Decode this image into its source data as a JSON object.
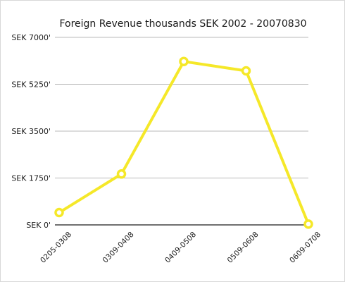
{
  "chart_data": {
    "type": "line",
    "title": "Foreign Revenue thousands SEK 2002 - 20070830",
    "xlabel": "",
    "ylabel": "",
    "categories": [
      "0205-0308",
      "0309-0408",
      "0409-0508",
      "0509-0608",
      "0609-0708"
    ],
    "series": [
      {
        "values": [
          460,
          1900,
          6100,
          5750,
          30
        ]
      }
    ],
    "ylim": [
      0,
      7000
    ],
    "yticks": [
      0,
      1750,
      3500,
      5250,
      7000
    ],
    "ytick_labels": [
      "SEK 0'",
      "SEK 1750'",
      "SEK 3500'",
      "SEK 5250'",
      "SEK 7000'"
    ],
    "grid": true,
    "line_color": "#f5e829",
    "grid_color": "#b8b8b8",
    "axis_color": "#1a1a1a"
  }
}
